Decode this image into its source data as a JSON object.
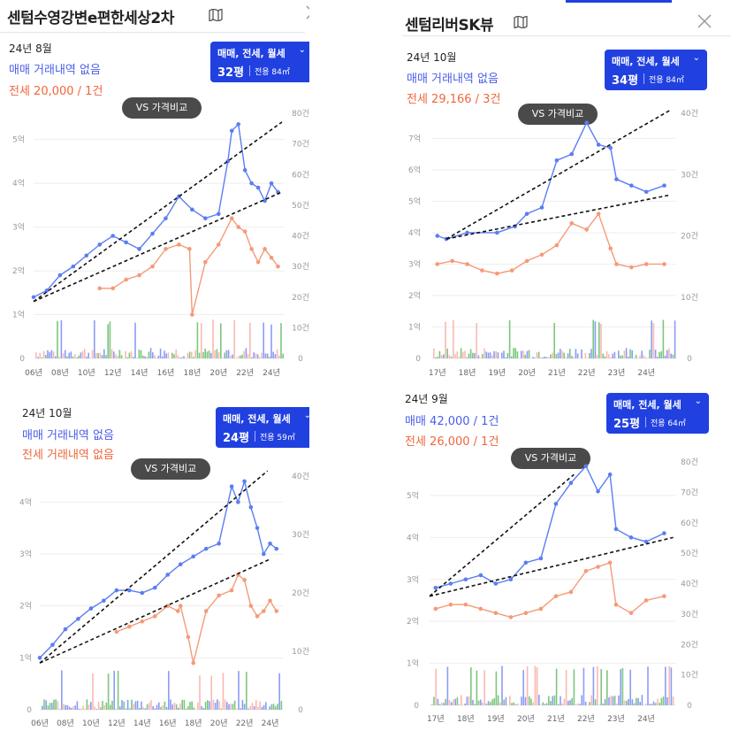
{
  "panels": [
    {
      "title": "센텀수영강변e편한세상2차",
      "date": "24년 8월",
      "sale_text": "매매 거래내역 없음",
      "jeonse_text": "전세 20,000 / 1건",
      "selector": {
        "options": "매매, 전세, 월세",
        "pyeong": "32평",
        "area": "전용 84㎡"
      },
      "vs_label": "VS 가격비교"
    },
    {
      "title": "센텀리버SK뷰",
      "date": "24년 10월",
      "sale_text": "매매 거래내역 없음",
      "jeonse_text": "전세 29,166 / 3건",
      "selector": {
        "options": "매매, 전세, 월세",
        "pyeong": "34평",
        "area": "전용 84㎡"
      },
      "vs_label": "VS 가격비교"
    },
    {
      "title": "",
      "date": "24년 10월",
      "sale_text": "매매 거래내역 없음",
      "jeonse_text": "전세 거래내역 없음",
      "selector": {
        "options": "매매, 전세, 월세",
        "pyeong": "24평",
        "area": "전용 59㎡"
      },
      "vs_label": "VS 가격비교"
    },
    {
      "title": "",
      "date": "24년 9월",
      "sale_text": "매매 42,000 / 1건",
      "jeonse_text": "전세 26,000 / 1건",
      "selector": {
        "options": "매매, 전세, 월세",
        "pyeong": "25평",
        "area": "전용 64㎡"
      },
      "vs_label": "VS 가격비교"
    }
  ],
  "icons": {
    "map": "map-icon",
    "close": "close-icon",
    "chevron": "chevron-down-icon"
  },
  "colors": {
    "sale": "#5b7df2",
    "jeonse": "#f59a78",
    "volume_sale": "#6e84f2",
    "volume_jeonse": "#f7a7a0",
    "volume_monthly": "#5cb85c",
    "accent": "#2140e0",
    "trend": "#111111"
  },
  "chart_data": [
    {
      "type": "line",
      "x_ticks": [
        "06년",
        "08년",
        "10년",
        "12년",
        "14년",
        "16년",
        "18년",
        "20년",
        "22년",
        "24년"
      ],
      "x_range": [
        2006,
        2025
      ],
      "y_ticks_left": [
        "0",
        "1억",
        "2억",
        "3억",
        "4억",
        "5억"
      ],
      "y_range_left": [
        0,
        5.6
      ],
      "y_ticks_right": [
        "0",
        "10건",
        "20건",
        "30건",
        "40건",
        "50건",
        "60건",
        "70건",
        "80건"
      ],
      "y_range_right": [
        0,
        80
      ],
      "series": [
        {
          "name": "매매",
          "x": [
            2006,
            2007,
            2008,
            2009,
            2010,
            2011,
            2012,
            2013,
            2014,
            2015,
            2016,
            2017,
            2018,
            2019,
            2020,
            2020.7,
            2021,
            2021.5,
            2022,
            2022.5,
            2023,
            2023.5,
            2024,
            2024.5
          ],
          "y": [
            1.4,
            1.55,
            1.9,
            2.1,
            2.35,
            2.6,
            2.8,
            2.65,
            2.5,
            2.85,
            3.2,
            3.7,
            3.4,
            3.2,
            3.3,
            4.5,
            5.2,
            5.35,
            4.3,
            4.0,
            3.9,
            3.6,
            4.0,
            3.8
          ]
        },
        {
          "name": "전세",
          "x": [
            2011,
            2012,
            2013,
            2014,
            2015,
            2016,
            2017,
            2017.8,
            2018,
            2019,
            2020,
            2021,
            2021.5,
            2022,
            2022.5,
            2023,
            2023.5,
            2024,
            2024.5
          ],
          "y": [
            1.6,
            1.6,
            1.8,
            1.9,
            2.1,
            2.5,
            2.6,
            2.5,
            1.0,
            2.2,
            2.6,
            3.2,
            3.0,
            2.9,
            2.5,
            2.2,
            2.5,
            2.3,
            2.1
          ]
        }
      ],
      "trend_lines": [
        {
          "from": [
            2006,
            1.3
          ],
          "to": [
            2024.8,
            5.4
          ]
        },
        {
          "from": [
            2006,
            1.3
          ],
          "to": [
            2024.8,
            3.8
          ]
        }
      ]
    },
    {
      "type": "line",
      "x_ticks": [
        "17년",
        "18년",
        "19년",
        "20년",
        "21년",
        "22년",
        "23년",
        "24년"
      ],
      "x_range": [
        2016.8,
        2025
      ],
      "y_ticks_left": [
        "0",
        "1억",
        "2억",
        "3억",
        "4억",
        "5억",
        "6억",
        "7억"
      ],
      "y_range_left": [
        0,
        7.8
      ],
      "y_ticks_right": [
        "0",
        "10건",
        "20건",
        "30건",
        "40건"
      ],
      "y_range_right": [
        0,
        40
      ],
      "series": [
        {
          "name": "매매",
          "x": [
            2017,
            2017.3,
            2018,
            2019,
            2019.6,
            2020,
            2020.5,
            2021,
            2021.5,
            2022,
            2022.4,
            2022.8,
            2023,
            2023.5,
            2024,
            2024.6
          ],
          "y": [
            3.9,
            3.8,
            4.0,
            4.0,
            4.2,
            4.6,
            4.8,
            6.3,
            6.5,
            7.5,
            6.8,
            6.7,
            5.7,
            5.5,
            5.3,
            5.5
          ]
        },
        {
          "name": "전세",
          "x": [
            2017,
            2017.5,
            2018,
            2018.5,
            2019,
            2019.5,
            2020,
            2020.5,
            2021,
            2021.5,
            2022,
            2022.4,
            2022.8,
            2023,
            2023.5,
            2024,
            2024.6
          ],
          "y": [
            3.0,
            3.1,
            3.0,
            2.8,
            2.7,
            2.8,
            3.1,
            3.3,
            3.6,
            4.3,
            4.1,
            4.6,
            3.5,
            3.0,
            2.9,
            3.0,
            3.0
          ]
        }
      ],
      "trend_lines": [
        {
          "from": [
            2017.3,
            3.8
          ],
          "to": [
            2024.8,
            7.9
          ]
        },
        {
          "from": [
            2017.3,
            3.8
          ],
          "to": [
            2024.8,
            5.2
          ]
        }
      ]
    },
    {
      "type": "line",
      "x_ticks": [
        "06년",
        "08년",
        "10년",
        "12년",
        "14년",
        "16년",
        "18년",
        "20년",
        "22년",
        "24년"
      ],
      "x_range": [
        2006,
        2025
      ],
      "y_ticks_left": [
        "0",
        "1억",
        "2억",
        "3억",
        "4억"
      ],
      "y_range_left": [
        0,
        4.5
      ],
      "y_ticks_right": [
        "0",
        "10건",
        "20건",
        "30건",
        "40건"
      ],
      "y_range_right": [
        0,
        40
      ],
      "series": [
        {
          "name": "매매",
          "x": [
            2006,
            2007,
            2008,
            2009,
            2010,
            2011,
            2012,
            2013,
            2014,
            2015,
            2016,
            2017,
            2018,
            2019,
            2020,
            2021,
            2021.5,
            2022,
            2022.5,
            2023,
            2023.5,
            2024,
            2024.5
          ],
          "y": [
            1.0,
            1.25,
            1.55,
            1.75,
            1.95,
            2.1,
            2.3,
            2.3,
            2.25,
            2.35,
            2.6,
            2.8,
            2.95,
            3.1,
            3.2,
            4.3,
            4.0,
            4.4,
            3.9,
            3.5,
            3.0,
            3.2,
            3.1
          ]
        },
        {
          "name": "전세",
          "x": [
            2012,
            2013,
            2014,
            2015,
            2016,
            2016.8,
            2017,
            2017.6,
            2018,
            2019,
            2020,
            2021,
            2021.5,
            2022,
            2022.5,
            2023,
            2023.5,
            2024,
            2024.5
          ],
          "y": [
            1.5,
            1.6,
            1.7,
            1.8,
            2.0,
            1.9,
            2.0,
            1.4,
            0.9,
            1.9,
            2.2,
            2.3,
            2.6,
            2.5,
            2.0,
            1.8,
            1.9,
            2.1,
            1.9
          ]
        }
      ],
      "trend_lines": [
        {
          "from": [
            2006,
            0.9
          ],
          "to": [
            2023.8,
            4.6
          ]
        },
        {
          "from": [
            2006,
            0.9
          ],
          "to": [
            2024,
            2.9
          ]
        }
      ]
    },
    {
      "type": "line",
      "x_ticks": [
        "17년",
        "18년",
        "19년",
        "20년",
        "21년",
        "22년",
        "23년",
        "24년"
      ],
      "x_range": [
        2016.8,
        2025
      ],
      "y_ticks_left": [
        "0",
        "1억",
        "2억",
        "3억",
        "4억",
        "5억"
      ],
      "y_range_left": [
        0,
        5.8
      ],
      "y_ticks_right": [
        "0",
        "10건",
        "20건",
        "30건",
        "40건",
        "50건",
        "60건",
        "70건",
        "80건"
      ],
      "y_range_right": [
        0,
        80
      ],
      "series": [
        {
          "name": "매매",
          "x": [
            2017,
            2017.5,
            2018,
            2018.5,
            2019,
            2019.5,
            2020,
            2020.5,
            2021,
            2021.5,
            2022,
            2022.4,
            2022.8,
            2023,
            2023.5,
            2024,
            2024.6
          ],
          "y": [
            2.8,
            2.9,
            3.0,
            3.1,
            2.9,
            3.0,
            3.4,
            3.5,
            4.8,
            5.3,
            5.7,
            5.1,
            5.5,
            4.2,
            4.0,
            3.9,
            4.1
          ]
        },
        {
          "name": "전세",
          "x": [
            2017,
            2017.5,
            2018,
            2018.5,
            2019,
            2019.5,
            2020,
            2020.5,
            2021,
            2021.5,
            2022,
            2022.4,
            2022.8,
            2023,
            2023.5,
            2024,
            2024.6
          ],
          "y": [
            2.3,
            2.4,
            2.4,
            2.3,
            2.2,
            2.1,
            2.2,
            2.3,
            2.6,
            2.7,
            3.2,
            3.3,
            3.4,
            2.4,
            2.2,
            2.5,
            2.6
          ]
        }
      ],
      "trend_lines": [
        {
          "from": [
            2016.8,
            2.6
          ],
          "to": [
            2021.6,
            5.5
          ]
        },
        {
          "from": [
            2016.8,
            2.6
          ],
          "to": [
            2024.9,
            4.0
          ]
        }
      ]
    }
  ]
}
